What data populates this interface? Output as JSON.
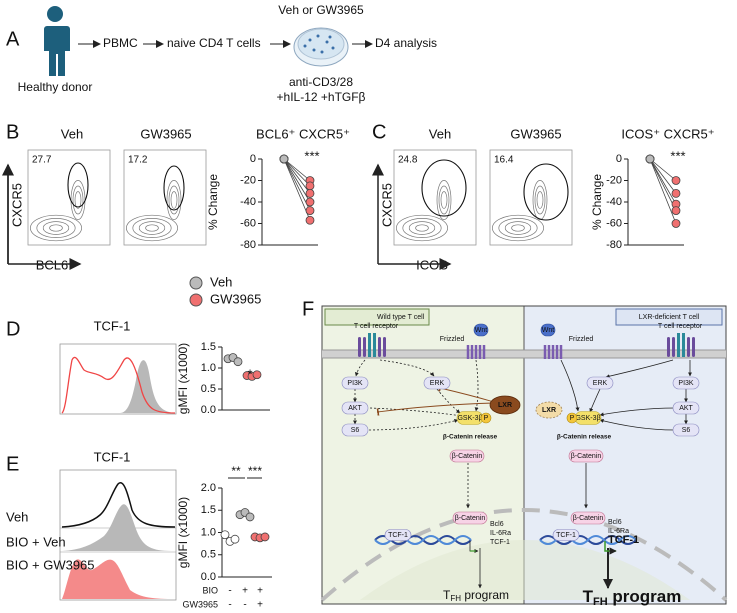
{
  "panel_a": {
    "letter": "A",
    "donor": "Healthy donor",
    "pbmc": "PBMC",
    "naive": "naive CD4 T cells",
    "treatment": "Veh or GW3965",
    "analysis": "D4 analysis",
    "stim": [
      "anti-CD3/28",
      "+hIL-12 +hTGFβ"
    ]
  },
  "panel_b": {
    "letter": "B",
    "flow": {
      "titles": [
        "Veh",
        "GW3965"
      ],
      "gates": [
        "27.7",
        "17.2"
      ],
      "y_label": "CXCR5",
      "x_label": "BCL6"
    },
    "chart": {
      "type": "paired-dot",
      "title": "BCL6⁺ CXCR5⁺",
      "y_label": "% Change",
      "ylim": [
        -80,
        0
      ],
      "yticks": [
        0,
        -20,
        -40,
        -60,
        -80
      ],
      "groups": [
        {
          "color": "#bbbbbb",
          "values": [
            0,
            0,
            0,
            0,
            0,
            0
          ]
        },
        {
          "color": "#f07070",
          "values": [
            -20,
            -25,
            -32,
            -40,
            -48,
            -57
          ]
        }
      ],
      "significance": "***"
    }
  },
  "panel_c": {
    "letter": "C",
    "flow": {
      "titles": [
        "Veh",
        "GW3965"
      ],
      "gates": [
        "24.8",
        "16.4"
      ],
      "y_label": "CXCR5",
      "x_label": "ICOS"
    },
    "chart": {
      "type": "paired-dot",
      "title": "ICOS⁺ CXCR5⁺",
      "y_label": "% Change",
      "ylim": [
        -80,
        0
      ],
      "yticks": [
        0,
        -20,
        -40,
        -60,
        -80
      ],
      "groups": [
        {
          "color": "#bbbbbb",
          "values": [
            0,
            0,
            0,
            0,
            0
          ]
        },
        {
          "color": "#f07070",
          "values": [
            -20,
            -32,
            -42,
            -48,
            -60
          ]
        }
      ],
      "significance": "***"
    }
  },
  "legend": [
    {
      "name": "Veh",
      "color": "#bbbbbb"
    },
    {
      "name": "GW3965",
      "color": "#f07070"
    }
  ],
  "panel_d": {
    "letter": "D",
    "histogram_title": "TCF-1",
    "chart": {
      "type": "dot",
      "y_label": "gMFI (x1000)",
      "ylim": [
        0,
        1.5
      ],
      "yticks": [
        {
          "value": 0,
          "label": "0.0"
        },
        0.5,
        {
          "value": 1,
          "label": "1.0"
        },
        1.5
      ],
      "groups": [
        {
          "color": "#bbbbbb",
          "values": [
            1.22,
            1.25,
            1.15
          ]
        },
        {
          "color": "#f07070",
          "values": [
            0.82,
            0.8,
            0.84
          ]
        }
      ],
      "significance": "*"
    }
  },
  "panel_e": {
    "letter": "E",
    "histogram_title": "TCF-1",
    "rows": [
      "Veh",
      "BIO + Veh",
      "BIO + GW3965"
    ],
    "chart": {
      "type": "dot",
      "y_label": "gMFI (x1000)",
      "ylim": [
        0,
        2
      ],
      "yticks": [
        {
          "value": 0,
          "label": "0.0"
        },
        0.5,
        {
          "value": 1,
          "label": "1.0"
        },
        1.5,
        {
          "value": 2,
          "label": "2.0"
        }
      ],
      "groups": [
        {
          "color": "#ffffff",
          "values": [
            0.95,
            0.8,
            0.85
          ]
        },
        {
          "color": "#bbbbbb",
          "values": [
            1.4,
            1.45,
            1.35
          ]
        },
        {
          "color": "#f07070",
          "values": [
            0.9,
            0.88,
            0.9
          ]
        }
      ],
      "significance": [
        "**",
        "***"
      ],
      "table": [
        {
          "label": "BIO",
          "signs": [
            "-",
            "+",
            "+"
          ]
        },
        {
          "label": "GW3965",
          "signs": [
            "-",
            "-",
            "+"
          ]
        }
      ]
    }
  },
  "panel_f": {
    "letter": "F",
    "wild_type": {
      "title": "Wild type T cell",
      "receptor": "T cell receptor",
      "frizzled": "Frizzled",
      "wnt": "Wnt",
      "pi3k": "PI3K",
      "erk": "ERK",
      "akt": "AKT",
      "s6": "S6",
      "lxr": "LXR",
      "gsk": "GSK-3β",
      "p": "P",
      "release": "β-Catenin release",
      "catenin": "β-Catenin",
      "nuclear_catenin": "β-Catenin",
      "tcf1": "TCF-1",
      "targets": [
        "Bcl6",
        "IL-6Ra",
        "TCF-1"
      ],
      "program": {
        "t": "T",
        "sub": "FH",
        "rest": " program"
      }
    },
    "lxr_deficient": {
      "title": "LXR-deficient T cell",
      "receptor": "T cell receptor",
      "frizzled": "Frizzled",
      "wnt": "Wnt",
      "pi3k": "PI3K",
      "erk": "ERK",
      "akt": "AKT",
      "s6": "S6",
      "lxr": "LXR",
      "gsk": "GSK-3β",
      "p": "P",
      "release": "β-Catenin release",
      "catenin": "β-Catenin",
      "nuclear_catenin": "β-Catenin",
      "tcf1": "TCF-1",
      "targets": [
        "Bcl6",
        "IL-6Ra",
        "TCF-1"
      ],
      "program": {
        "t": "T",
        "sub": "FH",
        "rest": " program"
      }
    }
  }
}
